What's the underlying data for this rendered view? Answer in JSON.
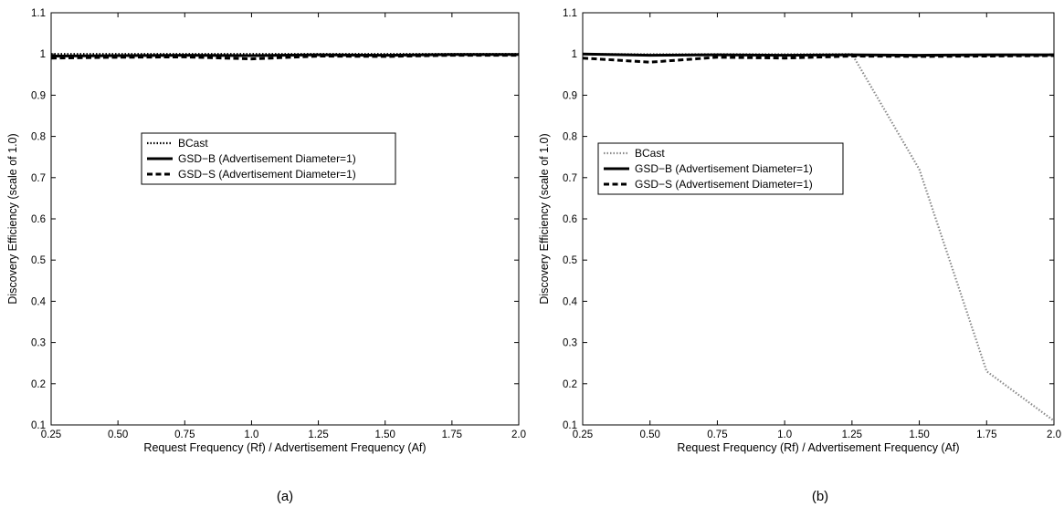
{
  "chart_data": [
    {
      "panel": "a",
      "caption": "(a)",
      "type": "line",
      "xlabel": "Request Frequency (Rf) / Advertisement Frequency (Af)",
      "ylabel": "Discovery Efficiency (scale of 1.0)",
      "x": [
        0.25,
        0.5,
        0.75,
        1.0,
        1.25,
        1.5,
        1.75,
        2.0
      ],
      "x_ticks": [
        "0.25",
        "0.50",
        "0.75",
        "1.0",
        "1.25",
        "1.50",
        "1.75",
        "2.0"
      ],
      "y_ticks": [
        "0.1",
        "0.2",
        "0.3",
        "0.4",
        "0.5",
        "0.6",
        "0.7",
        "0.8",
        "0.9",
        "1",
        "1.1"
      ],
      "xlim": [
        0.25,
        2.0
      ],
      "ylim": [
        0.1,
        1.1
      ],
      "legend_position": "center-left",
      "series": [
        {
          "name": "BCast",
          "style": "dotted",
          "values": [
            1.0,
            1.0,
            1.0,
            1.0,
            1.0,
            1.0,
            1.0,
            1.0
          ]
        },
        {
          "name": "GSD−B (Advertisement Diameter=1)",
          "style": "solid",
          "values": [
            0.995,
            0.996,
            0.997,
            0.996,
            0.998,
            0.997,
            0.999,
            0.999
          ]
        },
        {
          "name": "GSD−S (Advertisement Diameter=1)",
          "style": "dashed",
          "values": [
            0.99,
            0.992,
            0.993,
            0.988,
            0.995,
            0.994,
            0.997,
            0.997
          ]
        }
      ]
    },
    {
      "panel": "b",
      "caption": "(b)",
      "type": "line",
      "xlabel": "Request Frequency (Rf) / Advertisement Frequency (Af)",
      "ylabel": "Discovery Efficiency (scale of 1.0)",
      "x": [
        0.25,
        0.5,
        0.75,
        1.0,
        1.25,
        1.5,
        1.75,
        2.0
      ],
      "x_ticks": [
        "0.25",
        "0.50",
        "0.75",
        "1.0",
        "1.25",
        "1.50",
        "1.75",
        "2.0"
      ],
      "y_ticks": [
        "0.1",
        "0.2",
        "0.3",
        "0.4",
        "0.5",
        "0.6",
        "0.7",
        "0.8",
        "0.9",
        "1",
        "1.1"
      ],
      "xlim": [
        0.25,
        2.0
      ],
      "ylim": [
        0.1,
        1.1
      ],
      "legend_position": "center-left",
      "series": [
        {
          "name": "BCast",
          "style": "dotted",
          "values": [
            1.0,
            1.0,
            1.0,
            1.0,
            1.0,
            0.72,
            0.23,
            0.11
          ]
        },
        {
          "name": "GSD−B (Advertisement Diameter=1)",
          "style": "solid",
          "values": [
            1.0,
            0.997,
            0.998,
            0.997,
            0.998,
            0.997,
            0.998,
            0.998
          ]
        },
        {
          "name": "GSD−S (Advertisement Diameter=1)",
          "style": "dashed",
          "values": [
            0.99,
            0.98,
            0.992,
            0.99,
            0.995,
            0.994,
            0.995,
            0.996
          ]
        }
      ]
    }
  ]
}
